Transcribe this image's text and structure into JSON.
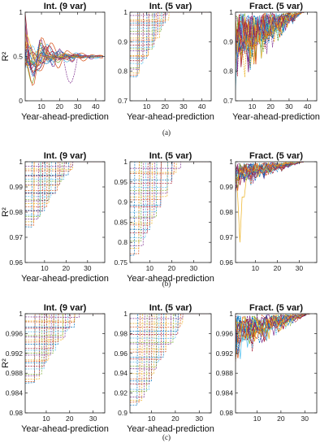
{
  "chart_data": [
    {
      "row": 0,
      "col": 0,
      "type": "line",
      "title": "Int. (9 var)",
      "ylabel": "R²",
      "xlabel": "Year-ahead-prediction",
      "xlim": [
        1,
        45
      ],
      "ylim": [
        0,
        1
      ],
      "xticks": [
        10,
        20,
        30,
        40
      ],
      "yticks": [
        0,
        0.5,
        1
      ],
      "ytick_labels": [
        "0",
        "0.5",
        "1"
      ],
      "series_count": 25,
      "behavior": "start in 0.35-1.0, oscillate and converge to 0.5 by about year 30; one dip to 0.2 near year 26"
    },
    {
      "row": 0,
      "col": 1,
      "type": "line",
      "title": "Int. (5 var)",
      "ylabel": "",
      "xlabel": "Year-ahead-prediction",
      "xlim": [
        1,
        45
      ],
      "ylim": [
        0.7,
        1
      ],
      "xticks": [
        10,
        20,
        30,
        40
      ],
      "yticks": [
        0.7,
        0.8,
        0.9,
        1
      ],
      "ytick_labels": [
        "0.7",
        "0.8",
        "0.9",
        "1"
      ],
      "series_count": 25,
      "behavior": "step curves: plateau levels 0.78-0.96, each jumps to 1 at years 3-21"
    },
    {
      "row": 0,
      "col": 2,
      "type": "line",
      "title": "Fract. (5 var)",
      "ylabel": "",
      "xlabel": "Year-ahead-prediction",
      "xlim": [
        1,
        45
      ],
      "ylim": [
        0.7,
        1
      ],
      "xticks": [
        10,
        20,
        30,
        40
      ],
      "yticks": [
        0.7,
        0.8,
        0.9,
        1
      ],
      "ytick_labels": [
        "0.7",
        "0.8",
        "0.9",
        "1"
      ],
      "series_count": 25,
      "behavior": "noisy values 0.87-1.0 with dips, converging to 1 by about year 38"
    },
    {
      "row": 1,
      "col": 0,
      "type": "line",
      "title": "Int. (9 var)",
      "ylabel": "R²",
      "xlabel": "Year-ahead-prediction",
      "xlim": [
        1,
        38
      ],
      "ylim": [
        0.96,
        1
      ],
      "xticks": [
        10,
        20,
        30
      ],
      "yticks": [
        0.96,
        0.97,
        0.98,
        0.99,
        1
      ],
      "ytick_labels": [
        "0.96",
        "0.97",
        "0.98",
        "0.99",
        "1"
      ],
      "series_count": 25,
      "behavior": "step curves: plateau levels 0.973-0.998, jumps to 1 at years 3-21"
    },
    {
      "row": 1,
      "col": 1,
      "type": "line",
      "title": "Int. (5 var)",
      "ylabel": "",
      "xlabel": "Year-ahead-prediction",
      "xlim": [
        1,
        38
      ],
      "ylim": [
        0.75,
        1
      ],
      "xticks": [
        10,
        20,
        30
      ],
      "yticks": [
        0.75,
        0.8,
        0.85,
        0.9,
        0.95,
        1
      ],
      "ytick_labels": [
        "0.75",
        "0.8",
        "0.85",
        "0.9",
        "0.95",
        "1"
      ],
      "series_count": 25,
      "behavior": "step curves: plateau levels 0.76-0.98, jumps to 1 at years 4-22"
    },
    {
      "row": 1,
      "col": 2,
      "type": "line",
      "title": "Fract. (5 var)",
      "ylabel": "",
      "xlabel": "",
      "xlim": [
        1,
        38
      ],
      "ylim": [
        0.96,
        1
      ],
      "xticks": [
        10,
        20,
        30
      ],
      "yticks": [
        0.96,
        0.97,
        0.98,
        0.99,
        1
      ],
      "ytick_labels": [
        "0.96",
        "0.97",
        "0.98",
        "0.99",
        "1"
      ],
      "series_count": 25,
      "behavior": "noisy values 0.993-1.0 converging to 1; one dip to 0.968 near year 3"
    },
    {
      "row": 2,
      "col": 0,
      "type": "line",
      "title": "Int. (9 var)",
      "ylabel": "R²",
      "xlabel": "Year-ahead-prediction",
      "xlim": [
        1,
        35
      ],
      "ylim": [
        0.98,
        1
      ],
      "xticks": [
        10,
        20,
        30
      ],
      "yticks": [
        0.98,
        0.984,
        0.988,
        0.992,
        0.996,
        1
      ],
      "ytick_labels": [
        "0.98",
        "0.984",
        "0.988",
        "0.992",
        "0.996",
        "1"
      ],
      "series_count": 25,
      "behavior": "step curves: plateau levels 0.9855-0.999, jumps to 1 at years 4-24"
    },
    {
      "row": 2,
      "col": 1,
      "type": "line",
      "title": "Int. (5 var)",
      "ylabel": "",
      "xlabel": "Year-ahead-prediction",
      "xlim": [
        1,
        35
      ],
      "ylim": [
        0.9,
        1
      ],
      "xticks": [
        10,
        20,
        30
      ],
      "yticks": [
        0.9,
        0.92,
        0.94,
        0.96,
        0.98,
        1
      ],
      "ytick_labels": [
        "0.9",
        "0.92",
        "0.94",
        "0.96",
        "0.98",
        "1"
      ],
      "series_count": 25,
      "behavior": "step curves: plateau levels 0.905-0.995, jumps to 1 at years 4-24"
    },
    {
      "row": 2,
      "col": 2,
      "type": "line",
      "title": "Fract. (5 var)",
      "ylabel": "",
      "xlabel": "",
      "xlim": [
        1,
        35
      ],
      "ylim": [
        0.98,
        1
      ],
      "xticks": [
        10,
        20,
        30
      ],
      "yticks": [
        0.98,
        0.984,
        0.988,
        0.992,
        0.996,
        1
      ],
      "ytick_labels": [
        "0.98",
        "0.984",
        "0.988",
        "0.992",
        "0.996",
        "1"
      ],
      "series_count": 25,
      "behavior": "noisy values 0.9935-1.0, converging near 0.999-1"
    }
  ],
  "subcaptions": [
    "(a)",
    "(b)",
    "(c)"
  ],
  "colors": [
    "#0072bd",
    "#d95319",
    "#edb120",
    "#7e2f8e",
    "#77ac30",
    "#4dbeee",
    "#a2142f"
  ]
}
